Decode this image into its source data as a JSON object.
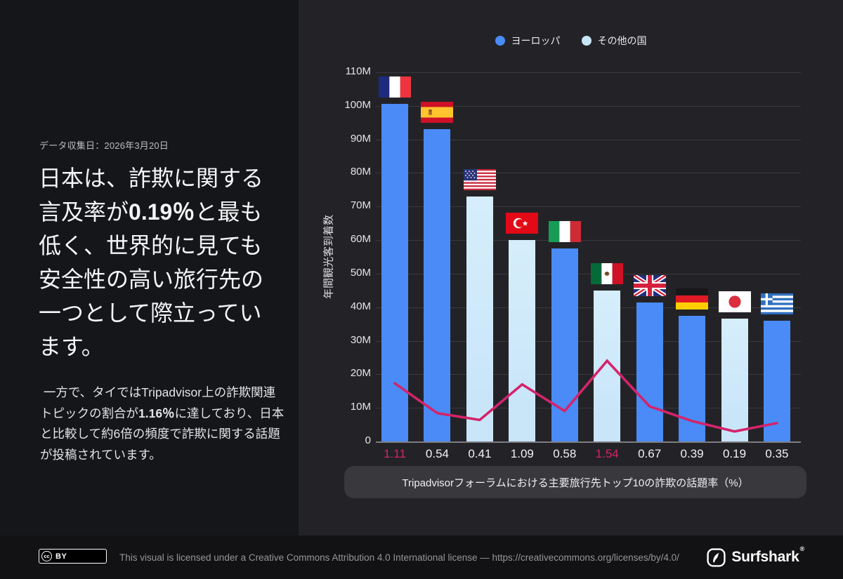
{
  "left_panel": {
    "date_label": "データ収集日：2026年3月20日",
    "heading": {
      "pre": "日本は、詐欺に関する言及率が",
      "em": "0.19％",
      "post": "と最も低く、世界的に見ても安全性の高い旅行先の一つとして際立っています。"
    },
    "paragraph": {
      "pre": " 一方で、タイではTripadvisor上の詐欺関連トピックの割合が",
      "em": "1.16％",
      "post": "に達しており、日本と比較して約6倍の頻度で詐欺に関する話題が投稿されています。"
    }
  },
  "chart_data": {
    "type": "bar",
    "title": "Tripadvisorフォーラムにおける主要旅行先トップ10の詐欺の話題率（%）",
    "ylabel": "年間観光客到着数",
    "ylim": [
      0,
      110
    ],
    "grid": "horizontal",
    "legend_position": "top-center",
    "y_ticks": [
      "110M",
      "100M",
      "90M",
      "80M",
      "70M",
      "60M",
      "50M",
      "40M",
      "30M",
      "20M",
      "10M",
      "0"
    ],
    "legend": [
      {
        "label": "ヨーロッパ",
        "color": "#4A8BF7"
      },
      {
        "label": "その他の国",
        "color": "#C9E6F9"
      }
    ],
    "categories": [
      "France",
      "Spain",
      "United States",
      "Turkey",
      "Italy",
      "Mexico",
      "United Kingdom",
      "Germany",
      "Japan",
      "Greece"
    ],
    "flags": [
      "fr",
      "es",
      "us",
      "tr",
      "it",
      "mx",
      "gb",
      "de",
      "jp",
      "gr"
    ],
    "series": [
      {
        "name": "年間観光客到着数（百万人）",
        "type": "bar",
        "values": [
          100.5,
          93,
          73,
          60,
          57.5,
          45,
          41.5,
          37.5,
          36.7,
          36
        ],
        "groups": [
          "europe",
          "europe",
          "other",
          "other",
          "europe",
          "other",
          "europe",
          "europe",
          "other",
          "europe"
        ]
      },
      {
        "name": "詐欺の話題率（%）",
        "type": "line",
        "color": "#D4246B",
        "values": [
          1.11,
          0.54,
          0.41,
          1.09,
          0.58,
          1.54,
          0.67,
          0.39,
          0.19,
          0.35
        ]
      }
    ],
    "x_value_labels": {
      "values": [
        "1.11",
        "0.54",
        "0.41",
        "1.09",
        "0.58",
        "1.54",
        "0.67",
        "0.39",
        "0.19",
        "0.35"
      ],
      "highlighted_indexes": [
        0,
        5
      ],
      "highlight_color": "#D4246B"
    }
  },
  "footer": {
    "cc_icon": "cc",
    "cc_by": "BY",
    "license_text": "This visual is licensed under a Creative Commons Attribution 4.0 International license — https://creativecommons.org/licenses/by/4.0/",
    "brand": "Surfshark",
    "brand_reg": "®"
  }
}
